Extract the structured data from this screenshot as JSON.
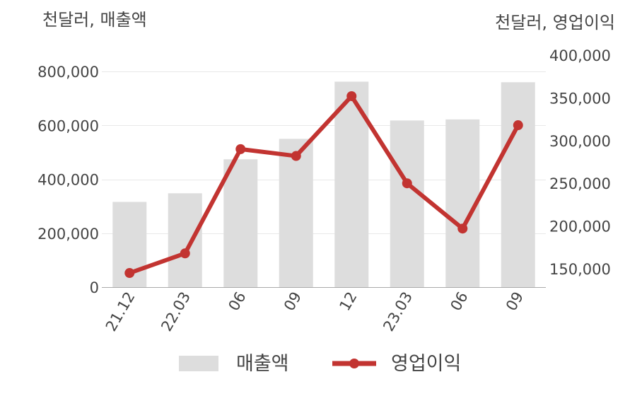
{
  "chart_data": {
    "type": "bar+line",
    "categories": [
      "21.12",
      "22.03",
      "06",
      "09",
      "12",
      "23.03",
      "06",
      "09"
    ],
    "series": [
      {
        "name": "매출액",
        "type": "bar",
        "axis": "left",
        "values": [
          316000,
          348000,
          474000,
          550000,
          762000,
          618000,
          622000,
          760000
        ]
      },
      {
        "name": "영업이익",
        "type": "line",
        "axis": "right",
        "values": [
          145000,
          168000,
          290000,
          282000,
          352000,
          250000,
          197000,
          318000
        ]
      }
    ],
    "left_axis": {
      "unit_label": "천달러, 매출액",
      "ylim": [
        0,
        800000
      ],
      "ticks": [
        "0",
        "200,000",
        "400,000",
        "600,000",
        "800,000"
      ],
      "tick_values": [
        0,
        200000,
        400000,
        600000,
        800000
      ]
    },
    "right_axis": {
      "unit_label": "천달러, 영업이익",
      "ylim": [
        150000,
        400000
      ],
      "ticks": [
        "150,000",
        "200,000",
        "250,000",
        "300,000",
        "350,000",
        "400,000"
      ],
      "tick_values": [
        150000,
        200000,
        250000,
        300000,
        350000,
        400000
      ]
    },
    "grid": true,
    "legend_position": "bottom",
    "colors": {
      "bar": "#dddddd",
      "line": "#c23431",
      "grid": "#e8e8e8",
      "axis": "#aaaaaa"
    }
  }
}
